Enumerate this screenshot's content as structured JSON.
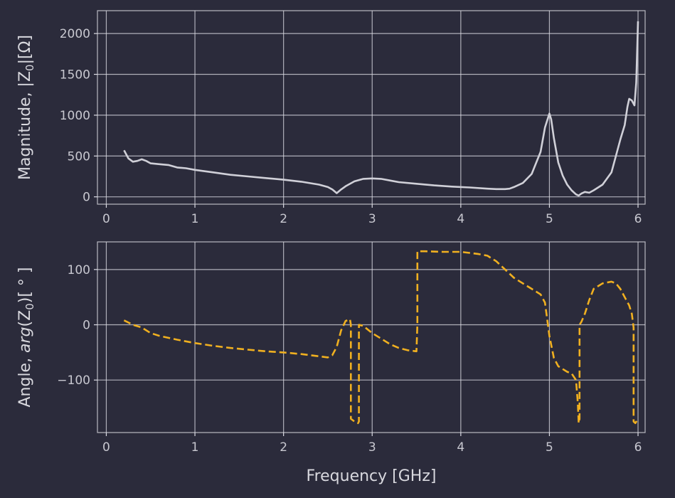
{
  "chart_data": [
    {
      "type": "line",
      "ylabel_prefix": "Magnitude, |Z",
      "ylabel_sub": "0",
      "ylabel_suffix": "|[Ω]",
      "xlim": [
        -0.1,
        6.08
      ],
      "ylim": [
        -90,
        2280
      ],
      "grid": true,
      "x_ticks": [
        "0",
        "1",
        "2",
        "3",
        "4",
        "5",
        "6"
      ],
      "y_ticks": [
        "0",
        "500",
        "1000",
        "1500",
        "2000"
      ],
      "line_color": "#d0d0d8",
      "line_style": "solid",
      "series": [
        {
          "x": [
            0.2,
            0.25,
            0.3,
            0.35,
            0.4,
            0.45,
            0.5,
            0.6,
            0.7,
            0.8,
            0.9,
            1.0,
            1.2,
            1.4,
            1.6,
            1.8,
            2.0,
            2.2,
            2.4,
            2.5,
            2.55,
            2.6,
            2.65,
            2.7,
            2.8,
            2.9,
            3.0,
            3.1,
            3.2,
            3.3,
            3.5,
            3.7,
            3.9,
            4.1,
            4.3,
            4.4,
            4.5,
            4.55,
            4.6,
            4.7,
            4.8,
            4.9,
            4.95,
            5.0,
            5.02,
            5.05,
            5.1,
            5.15,
            5.2,
            5.25,
            5.3,
            5.33,
            5.36,
            5.4,
            5.45,
            5.5,
            5.6,
            5.7,
            5.75,
            5.8,
            5.85,
            5.88,
            5.9,
            5.93,
            5.96,
            5.98,
            6.0
          ],
          "y": [
            570,
            470,
            430,
            440,
            460,
            440,
            410,
            400,
            390,
            360,
            350,
            330,
            300,
            270,
            250,
            230,
            210,
            185,
            150,
            120,
            90,
            45,
            90,
            130,
            190,
            220,
            225,
            220,
            200,
            180,
            160,
            140,
            125,
            115,
            100,
            95,
            95,
            100,
            120,
            170,
            280,
            550,
            850,
            1020,
            950,
            720,
            420,
            260,
            150,
            80,
            30,
            15,
            40,
            60,
            50,
            80,
            150,
            300,
            500,
            700,
            880,
            1100,
            1200,
            1180,
            1120,
            1400,
            2150
          ]
        }
      ]
    },
    {
      "type": "line",
      "ylabel_prefix": "Angle, ",
      "ylabel_italic": "arg",
      "ylabel_mid": "(Z",
      "ylabel_sub": "0",
      "ylabel_suffix": ")[ ° ]",
      "xlabel": "Frequency [GHz]",
      "xlim": [
        -0.1,
        6.08
      ],
      "ylim": [
        -195,
        150
      ],
      "grid": true,
      "x_ticks": [
        "0",
        "1",
        "2",
        "3",
        "4",
        "5",
        "6"
      ],
      "y_ticks": [
        "100",
        "0",
        "−100"
      ],
      "y_tick_values": [
        100,
        0,
        -100
      ],
      "line_color": "#f0b020",
      "line_style": "dashed",
      "series": [
        {
          "x": [
            0.2,
            0.3,
            0.4,
            0.5,
            0.6,
            0.8,
            1.0,
            1.2,
            1.4,
            1.6,
            1.8,
            2.0,
            2.2,
            2.4,
            2.5,
            2.55,
            2.6,
            2.65,
            2.7,
            2.75,
            2.76,
            2.76,
            2.8,
            2.84,
            2.85,
            2.85,
            2.9,
            3.0,
            3.1,
            3.2,
            3.3,
            3.4,
            3.5,
            3.51,
            3.51,
            3.6,
            3.8,
            4.0,
            4.1,
            4.2,
            4.3,
            4.4,
            4.5,
            4.6,
            4.7,
            4.8,
            4.9,
            4.95,
            5.0,
            5.05,
            5.1,
            5.15,
            5.2,
            5.25,
            5.3,
            5.32,
            5.33,
            5.34,
            5.34,
            5.36,
            5.4,
            5.45,
            5.5,
            5.6,
            5.7,
            5.75,
            5.8,
            5.85,
            5.9,
            5.93,
            5.95,
            5.95,
            5.97,
            6.0
          ],
          "y": [
            8,
            0,
            -5,
            -15,
            -20,
            -27,
            -33,
            -38,
            -42,
            -45,
            -48,
            -50,
            -53,
            -57,
            -59,
            -55,
            -40,
            -10,
            7,
            10,
            0,
            -170,
            -175,
            -178,
            -175,
            0,
            -2,
            -15,
            -25,
            -35,
            -42,
            -46,
            -48,
            0,
            133,
            133,
            132,
            132,
            130,
            128,
            125,
            115,
            100,
            85,
            75,
            65,
            55,
            40,
            -20,
            -60,
            -75,
            -80,
            -85,
            -88,
            -100,
            -140,
            -178,
            -170,
            0,
            5,
            20,
            45,
            65,
            75,
            78,
            75,
            65,
            50,
            35,
            20,
            -5,
            -175,
            -178,
            -170
          ]
        }
      ]
    }
  ]
}
